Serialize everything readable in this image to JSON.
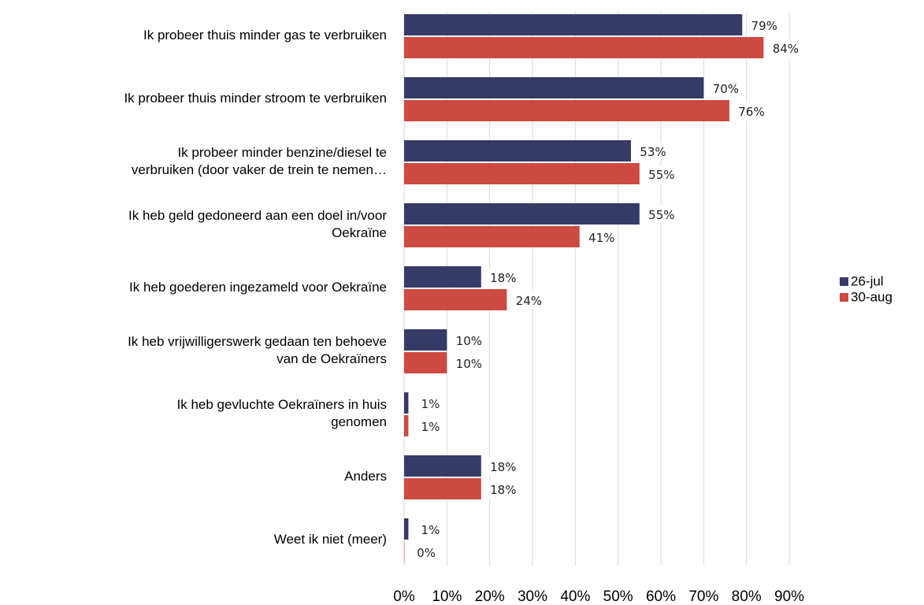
{
  "chart_data": {
    "type": "bar",
    "orientation": "horizontal",
    "categories": [
      "Ik probeer thuis minder gas te verbruiken",
      "Ik probeer thuis minder stroom te verbruiken",
      "Ik probeer minder benzine/diesel te\nverbruiken (door vaker de trein te nemen…",
      "Ik heb geld gedoneerd aan een doel in/voor\nOekraïne",
      "Ik heb goederen ingezameld voor Oekraïne",
      "Ik heb vrijwilligerswerk gedaan ten behoeve\nvan de Oekraïners",
      "Ik heb gevluchte Oekraïners in huis\ngenomen",
      "Anders",
      "Weet ik niet (meer)"
    ],
    "series": [
      {
        "name": "26-jul",
        "color": "#363a66",
        "values": [
          79,
          70,
          53,
          55,
          18,
          10,
          1,
          18,
          1
        ],
        "value_labels": [
          "79%",
          "70%",
          "53%",
          "55%",
          "18%",
          "10%",
          "1%",
          "18%",
          "1%"
        ]
      },
      {
        "name": "30-aug",
        "color": "#cc4a41",
        "values": [
          84,
          76,
          55,
          41,
          24,
          10,
          1,
          18,
          0
        ],
        "value_labels": [
          "84%",
          "76%",
          "55%",
          "41%",
          "24%",
          "10%",
          "1%",
          "18%",
          "0%"
        ]
      }
    ],
    "xlim": [
      0,
      90
    ],
    "xticks": [
      {
        "value": 0,
        "label": "0%"
      },
      {
        "value": 10,
        "label": "10%"
      },
      {
        "value": 20,
        "label": "20%"
      },
      {
        "value": 30,
        "label": "30%"
      },
      {
        "value": 40,
        "label": "40%"
      },
      {
        "value": 50,
        "label": "50%"
      },
      {
        "value": 60,
        "label": "60%"
      },
      {
        "value": 70,
        "label": "70%"
      },
      {
        "value": 80,
        "label": "80%"
      },
      {
        "value": 90,
        "label": "90%"
      }
    ],
    "grid": true,
    "legend": "right"
  }
}
